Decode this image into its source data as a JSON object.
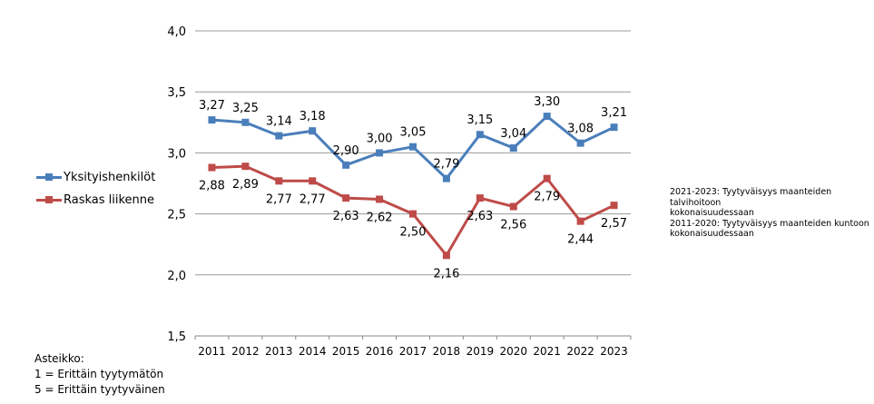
{
  "chart_data": {
    "type": "line",
    "categories": [
      "2011",
      "2012",
      "2013",
      "2014",
      "2015",
      "2016",
      "2017",
      "2018",
      "2019",
      "2020",
      "2021",
      "2022",
      "2023"
    ],
    "series": [
      {
        "name": "Yksityishenkilöt",
        "color": "#4a7ebb",
        "values": [
          3.27,
          3.25,
          3.14,
          3.18,
          2.9,
          3.0,
          3.05,
          2.79,
          3.15,
          3.04,
          3.3,
          3.08,
          3.21
        ],
        "labels": [
          "3,27",
          "3,25",
          "3,14",
          "3,18",
          "2,90",
          "3,00",
          "3,05",
          "2,79",
          "3,15",
          "3,04",
          "3,30",
          "3,08",
          "3,21"
        ]
      },
      {
        "name": "Raskas liikenne",
        "color": "#be4b48",
        "values": [
          2.88,
          2.89,
          2.77,
          2.77,
          2.63,
          2.62,
          2.5,
          2.16,
          2.63,
          2.56,
          2.79,
          2.44,
          2.57
        ],
        "labels": [
          "2,88",
          "2,89",
          "2,77",
          "2,77",
          "2,63",
          "2,62",
          "2,50",
          "2,16",
          "2,63",
          "2,56",
          "2,79",
          "2,44",
          "2,57"
        ]
      }
    ],
    "ylim": [
      1.5,
      4.0
    ],
    "yticks": [
      "1,5",
      "2,0",
      "2,5",
      "3,0",
      "3,5",
      "4,0"
    ],
    "grid": true,
    "legend": "left"
  },
  "notes": [
    "2021-2023: Tyytyväisyys maanteiden talvihoitoon",
    "kokonaisuudessaan",
    "2011-2020: Tyytyväisyys maanteiden kuntoon",
    "kokonaisuudessaan"
  ],
  "scale": [
    "Asteikko:",
    "1 = Erittäin tyytymätön",
    "5 = Erittäin tyytyväinen"
  ]
}
